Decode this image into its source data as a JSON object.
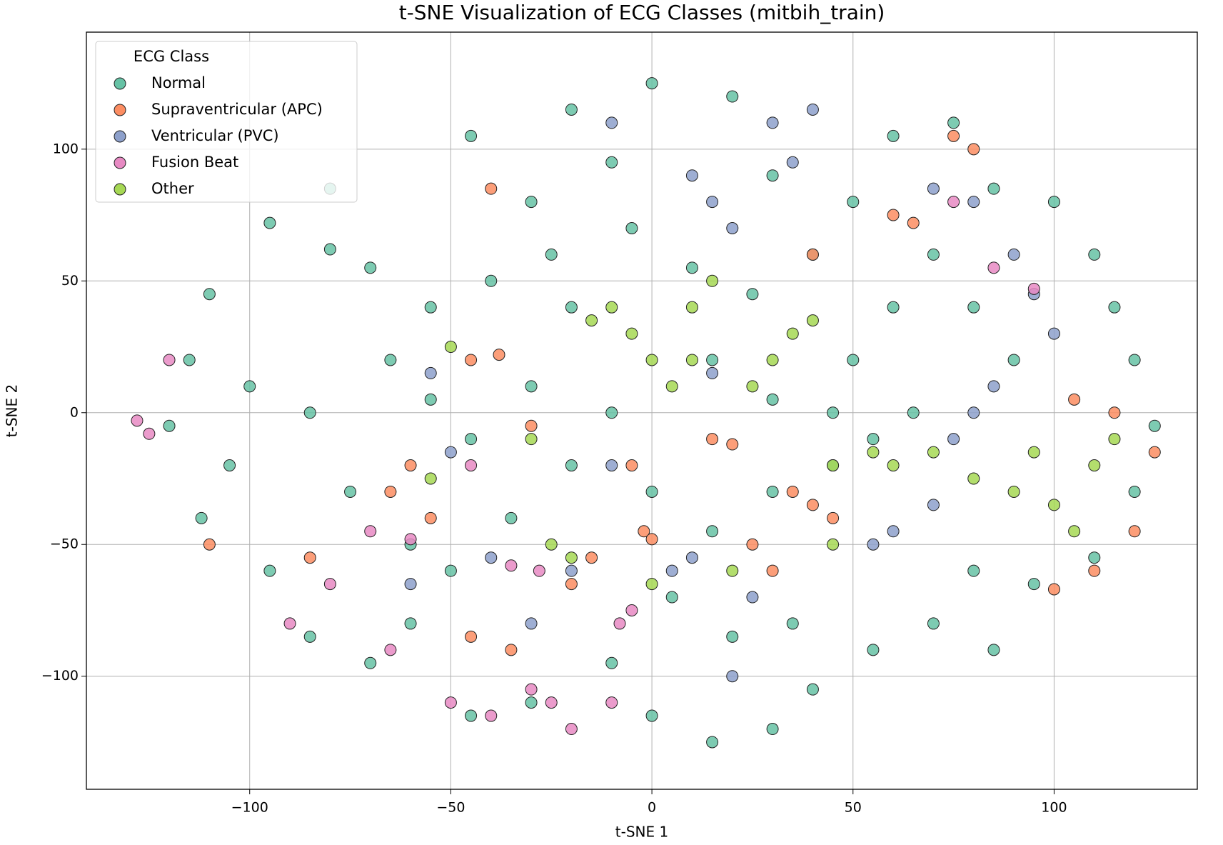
{
  "chart_data": {
    "type": "scatter",
    "title": "t-SNE Visualization of ECG Classes (mitbih_train)",
    "x_label": "t-SNE 1",
    "y_label": "t-SNE 2",
    "legend_title": "ECG Class",
    "legend_position": "upper-left",
    "grid": true,
    "xlim": [
      -140.6,
      135.6
    ],
    "ylim": [
      -142.9,
      144.4
    ],
    "xticks": [
      {
        "value": -100,
        "label": "−100"
      },
      {
        "value": -50,
        "label": "−50"
      },
      0,
      50,
      100
    ],
    "yticks": [
      {
        "value": -100,
        "label": "−100"
      },
      {
        "value": -50,
        "label": "−50"
      },
      0,
      50,
      100
    ],
    "series": [
      {
        "name": "Normal",
        "color": "#66c2a5",
        "x": [
          -120,
          -115,
          -110,
          -95,
          -80,
          -70,
          -100,
          -105,
          -112,
          -95,
          -85,
          -70,
          -60,
          -75,
          -85,
          -65,
          -55,
          -40,
          -30,
          -45,
          -20,
          0,
          20,
          -10,
          -25,
          -5,
          10,
          25,
          40,
          30,
          50,
          60,
          75,
          85,
          100,
          110,
          115,
          120,
          125,
          120,
          110,
          95,
          80,
          70,
          55,
          40,
          30,
          15,
          0,
          -10,
          -30,
          -45,
          -50,
          -35,
          -20,
          -10,
          0,
          15,
          30,
          45,
          55,
          65,
          50,
          60,
          70,
          80,
          90,
          45,
          30,
          15,
          -30,
          -45,
          -55,
          -60,
          -20,
          5,
          20,
          35,
          -80,
          85
        ],
        "values": [
          -5,
          20,
          45,
          72,
          62,
          55,
          10,
          -20,
          -40,
          -60,
          -85,
          -95,
          -80,
          -30,
          0,
          20,
          40,
          50,
          80,
          105,
          115,
          125,
          120,
          95,
          60,
          70,
          55,
          45,
          60,
          90,
          80,
          105,
          110,
          85,
          80,
          60,
          40,
          20,
          -5,
          -30,
          -55,
          -65,
          -60,
          -80,
          -90,
          -105,
          -120,
          -125,
          -115,
          -95,
          -110,
          -115,
          -60,
          -40,
          -20,
          0,
          -30,
          -45,
          -30,
          -20,
          -10,
          0,
          20,
          40,
          60,
          40,
          20,
          0,
          5,
          20,
          10,
          -10,
          5,
          -50,
          40,
          -70,
          -85,
          -80,
          85,
          -90
        ]
      },
      {
        "name": "Supraventricular (APC)",
        "color": "#fc8d62",
        "x": [
          -65,
          -60,
          -55,
          -45,
          -35,
          -20,
          -15,
          -2,
          0,
          -5,
          15,
          20,
          35,
          40,
          45,
          60,
          65,
          80,
          75,
          105,
          115,
          125,
          120,
          110,
          100,
          40,
          -40,
          -45,
          -30,
          -85,
          25,
          30,
          -110,
          -38
        ],
        "values": [
          -30,
          -20,
          -40,
          -85,
          -90,
          -65,
          -55,
          -45,
          -48,
          -20,
          -10,
          -12,
          -30,
          -35,
          -40,
          75,
          72,
          100,
          105,
          5,
          0,
          -15,
          -45,
          -60,
          -67,
          60,
          85,
          20,
          -5,
          -55,
          -50,
          -60,
          -50,
          22
        ]
      },
      {
        "name": "Ventricular (PVC)",
        "color": "#8da0cb",
        "x": [
          10,
          15,
          20,
          30,
          40,
          35,
          70,
          80,
          90,
          100,
          85,
          80,
          75,
          70,
          60,
          55,
          10,
          5,
          -10,
          -20,
          -40,
          -50,
          -60,
          -30,
          25,
          20,
          95,
          -10,
          -55,
          15
        ],
        "values": [
          90,
          80,
          70,
          110,
          115,
          95,
          85,
          80,
          60,
          30,
          10,
          0,
          -10,
          -35,
          -45,
          -50,
          -55,
          -60,
          -20,
          -60,
          -55,
          -15,
          -65,
          -80,
          -70,
          -100,
          45,
          110,
          15,
          15
        ]
      },
      {
        "name": "Fusion Beat",
        "color": "#e78ac3",
        "x": [
          -128,
          -125,
          -120,
          -90,
          -80,
          -70,
          -65,
          -50,
          -40,
          -30,
          -25,
          -20,
          -10,
          -8,
          -5,
          -28,
          -35,
          -60,
          95,
          85,
          75,
          -45
        ],
        "values": [
          -3,
          -8,
          20,
          -80,
          -65,
          -45,
          -90,
          -110,
          -115,
          -105,
          -110,
          -120,
          -110,
          -80,
          -75,
          -60,
          -58,
          -48,
          47,
          55,
          80,
          -20
        ]
      },
      {
        "name": "Other",
        "color": "#a6d854",
        "x": [
          -25,
          -20,
          -10,
          -5,
          0,
          5,
          10,
          15,
          10,
          25,
          30,
          35,
          40,
          45,
          55,
          60,
          70,
          80,
          90,
          95,
          100,
          105,
          110,
          115,
          -30,
          -15,
          -50,
          -55,
          20,
          0,
          45
        ],
        "values": [
          -50,
          -55,
          40,
          30,
          20,
          10,
          40,
          50,
          20,
          10,
          20,
          30,
          35,
          -20,
          -15,
          -20,
          -15,
          -25,
          -30,
          -15,
          -35,
          -45,
          -20,
          -10,
          -10,
          35,
          25,
          -25,
          -60,
          -65,
          -50
        ]
      }
    ]
  }
}
